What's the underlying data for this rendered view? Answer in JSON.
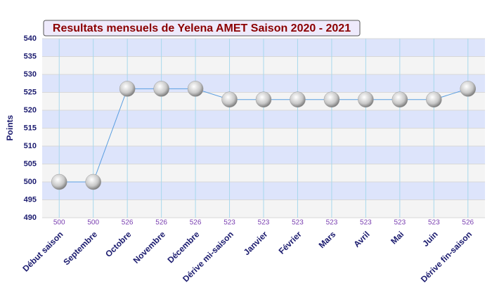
{
  "chart_data": {
    "type": "line",
    "title": "Resultats mensuels de Yelena AMET Saison 2020 - 2021",
    "y_label": "Points",
    "categories": [
      "Début saison",
      "Septembre",
      "Octobre",
      "Novembre",
      "Décembre",
      "Dérive mi-saison",
      "Janvier",
      "Février",
      "Mars",
      "Avril",
      "Mai",
      "Juin",
      "Dérive fin-saison"
    ],
    "values": [
      500,
      500,
      526,
      526,
      526,
      523,
      523,
      523,
      523,
      523,
      523,
      523,
      526
    ],
    "color": "#5a9ee0",
    "ylim": [
      490,
      540
    ],
    "yticks": [
      490,
      495,
      500,
      505,
      510,
      515,
      520,
      525,
      530,
      535,
      540
    ],
    "grid": true,
    "band_colors": [
      "#f4f4f4",
      "#dde4fb"
    ]
  }
}
